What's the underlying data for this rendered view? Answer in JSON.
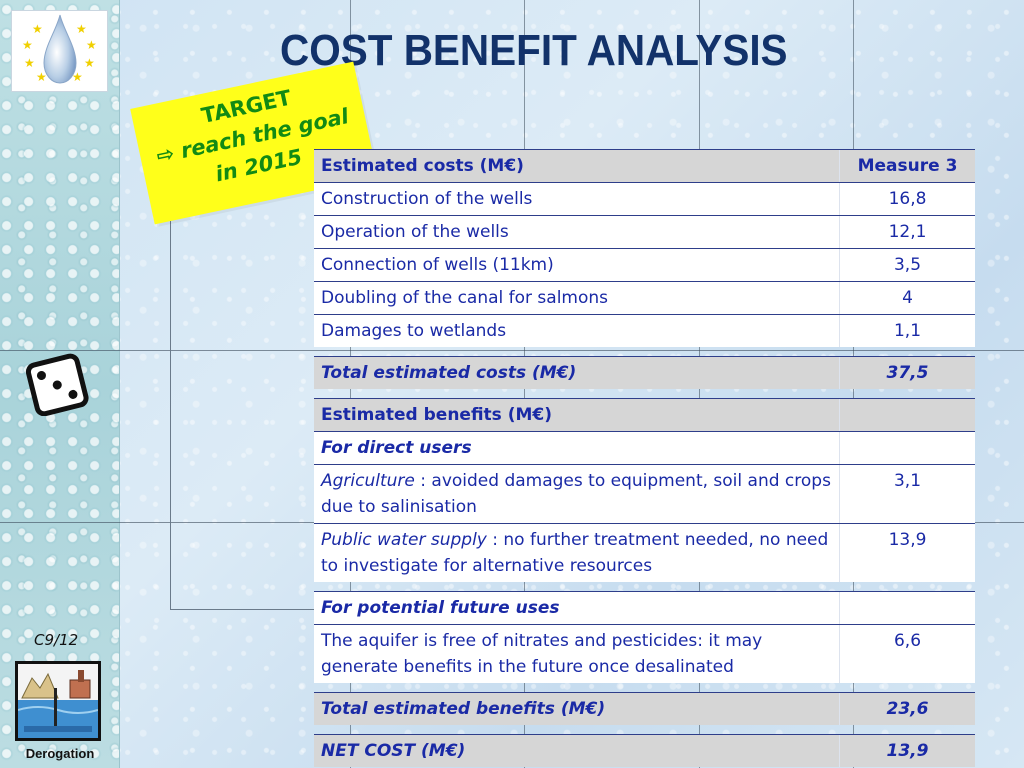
{
  "slide": {
    "title": "COST BENEFIT ANALYSIS",
    "number": "C9/12",
    "corner_label": "Derogation"
  },
  "target": {
    "line1": "TARGET",
    "line2": "⇨ reach the goal",
    "line3": "in 2015"
  },
  "table": {
    "header": {
      "label": "Estimated costs (M€)",
      "value": "Measure 3"
    },
    "costs": [
      {
        "label": "Construction of the wells",
        "value": "16,8"
      },
      {
        "label": "Operation of the wells",
        "value": "12,1"
      },
      {
        "label": "Connection of wells (11km)",
        "value": "3,5"
      },
      {
        "label": "Doubling of the canal for salmons",
        "value": "4"
      },
      {
        "label": "Damages to wetlands",
        "value": "1,1"
      }
    ],
    "total_costs": {
      "label": "Total estimated costs (M€)",
      "value": "37,5"
    },
    "benefits_header": {
      "label": "Estimated benefits (M€)"
    },
    "direct_users": {
      "label": "For direct users"
    },
    "agriculture": {
      "term": "Agriculture",
      "text": " : avoided damages to equipment, soil and crops due to salinisation",
      "value": "3,1"
    },
    "water_supply": {
      "term": "Public water supply",
      "text": " : no further treatment needed, no need to investigate for alternative resources",
      "value": "13,9"
    },
    "future_uses": {
      "label": "For potential future uses"
    },
    "aquifer": {
      "text": "The aquifer is free of nitrates and pesticides: it may generate benefits in the future once desalinated",
      "value": "6,6"
    },
    "total_benefits": {
      "label": "Total estimated benefits (M€)",
      "value": "23,6"
    },
    "net_cost": {
      "label": "NET COST (M€)",
      "value": "13,9"
    }
  },
  "icons": {
    "logo": "water-drop-eu-stars-icon",
    "dice": "dice-icon",
    "derogation": "derogation-landscape-icon"
  }
}
